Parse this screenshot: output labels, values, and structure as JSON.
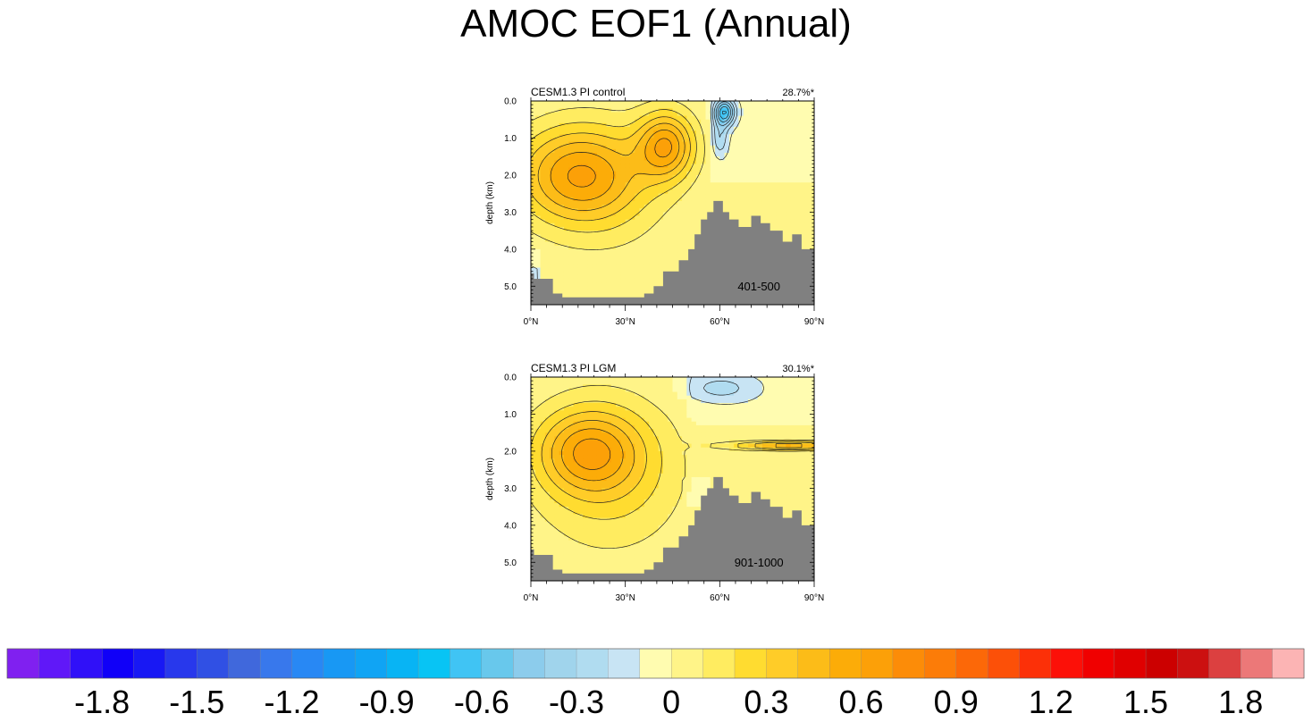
{
  "title": "AMOC EOF1 (Annual)",
  "chart_data": [
    {
      "type": "heatmap",
      "title": "CESM1.3 PI control",
      "variance_label": "28.7%*",
      "years_label": "401-500",
      "xlabel": "",
      "ylabel": "depth (km)",
      "x_ticks": [
        "0°N",
        "30°N",
        "60°N",
        "90°N"
      ],
      "y_ticks": [
        "0.0",
        "1.0",
        "2.0",
        "3.0",
        "4.0",
        "5.0"
      ],
      "xlim": [
        0,
        90
      ],
      "ylim": [
        5.5,
        0
      ],
      "features": [
        {
          "kind": "positive-maximum",
          "lat": 44,
          "depth_km": 1.2,
          "value": 1.0
        },
        {
          "kind": "positive-cell",
          "lat": 15,
          "depth_km": 2.0,
          "value": 0.5
        },
        {
          "kind": "negative-minimum",
          "lat": 62,
          "depth_km": 0.3,
          "value": -0.6
        },
        {
          "kind": "negative-region",
          "lat": 72,
          "depth_km": 1.2,
          "value": -0.1
        }
      ]
    },
    {
      "type": "heatmap",
      "title": "CESM1.3 PI LGM",
      "variance_label": "30.1%*",
      "years_label": "901-1000",
      "xlabel": "",
      "ylabel": "depth (km)",
      "x_ticks": [
        "0°N",
        "30°N",
        "60°N",
        "90°N"
      ],
      "y_ticks": [
        "0.0",
        "1.0",
        "2.0",
        "3.0",
        "4.0",
        "5.0"
      ],
      "xlim": [
        0,
        90
      ],
      "ylim": [
        5.5,
        0
      ],
      "features": [
        {
          "kind": "positive-maximum",
          "lat": 18,
          "depth_km": 2.0,
          "value": 0.6
        },
        {
          "kind": "positive-band",
          "lat": 80,
          "depth_km": 1.9,
          "value": 0.7
        },
        {
          "kind": "negative-region",
          "lat": 60,
          "depth_km": 0.3,
          "value": -0.2
        }
      ]
    }
  ],
  "colorbar": {
    "ticks": [
      "-1.8",
      "-1.5",
      "-1.2",
      "-0.9",
      "-0.6",
      "-0.3",
      "0",
      "0.3",
      "0.6",
      "0.9",
      "1.2",
      "1.5",
      "1.8"
    ],
    "tick_values": [
      -1.8,
      -1.5,
      -1.2,
      -0.9,
      -0.6,
      -0.3,
      0,
      0.3,
      0.6,
      0.9,
      1.2,
      1.5,
      1.8
    ],
    "min": -2.1,
    "step": 0.1,
    "colors": [
      "#8020f0",
      "#6018f8",
      "#3010f8",
      "#1000f8",
      "#1818f4",
      "#2838ec",
      "#3050e4",
      "#4068dc",
      "#3878ec",
      "#2888f4",
      "#1898f4",
      "#10a4f4",
      "#08b4f4",
      "#08c4f4",
      "#40c4f4",
      "#68c8ec",
      "#8cccec",
      "#a0d4ec",
      "#b0dcf0",
      "#c8e4f4",
      "#fffcb0",
      "#fff488",
      "#ffec60",
      "#ffdc30",
      "#ffcc28",
      "#fcbc18",
      "#fcac08",
      "#fca008",
      "#fc8c08",
      "#fc7c08",
      "#fc6808",
      "#fc5008",
      "#fc3008",
      "#fc1008",
      "#f00000",
      "#e00000",
      "#cc0000",
      "#cc1010",
      "#dc4040",
      "#ec7878",
      "#fcb4b4"
    ]
  }
}
